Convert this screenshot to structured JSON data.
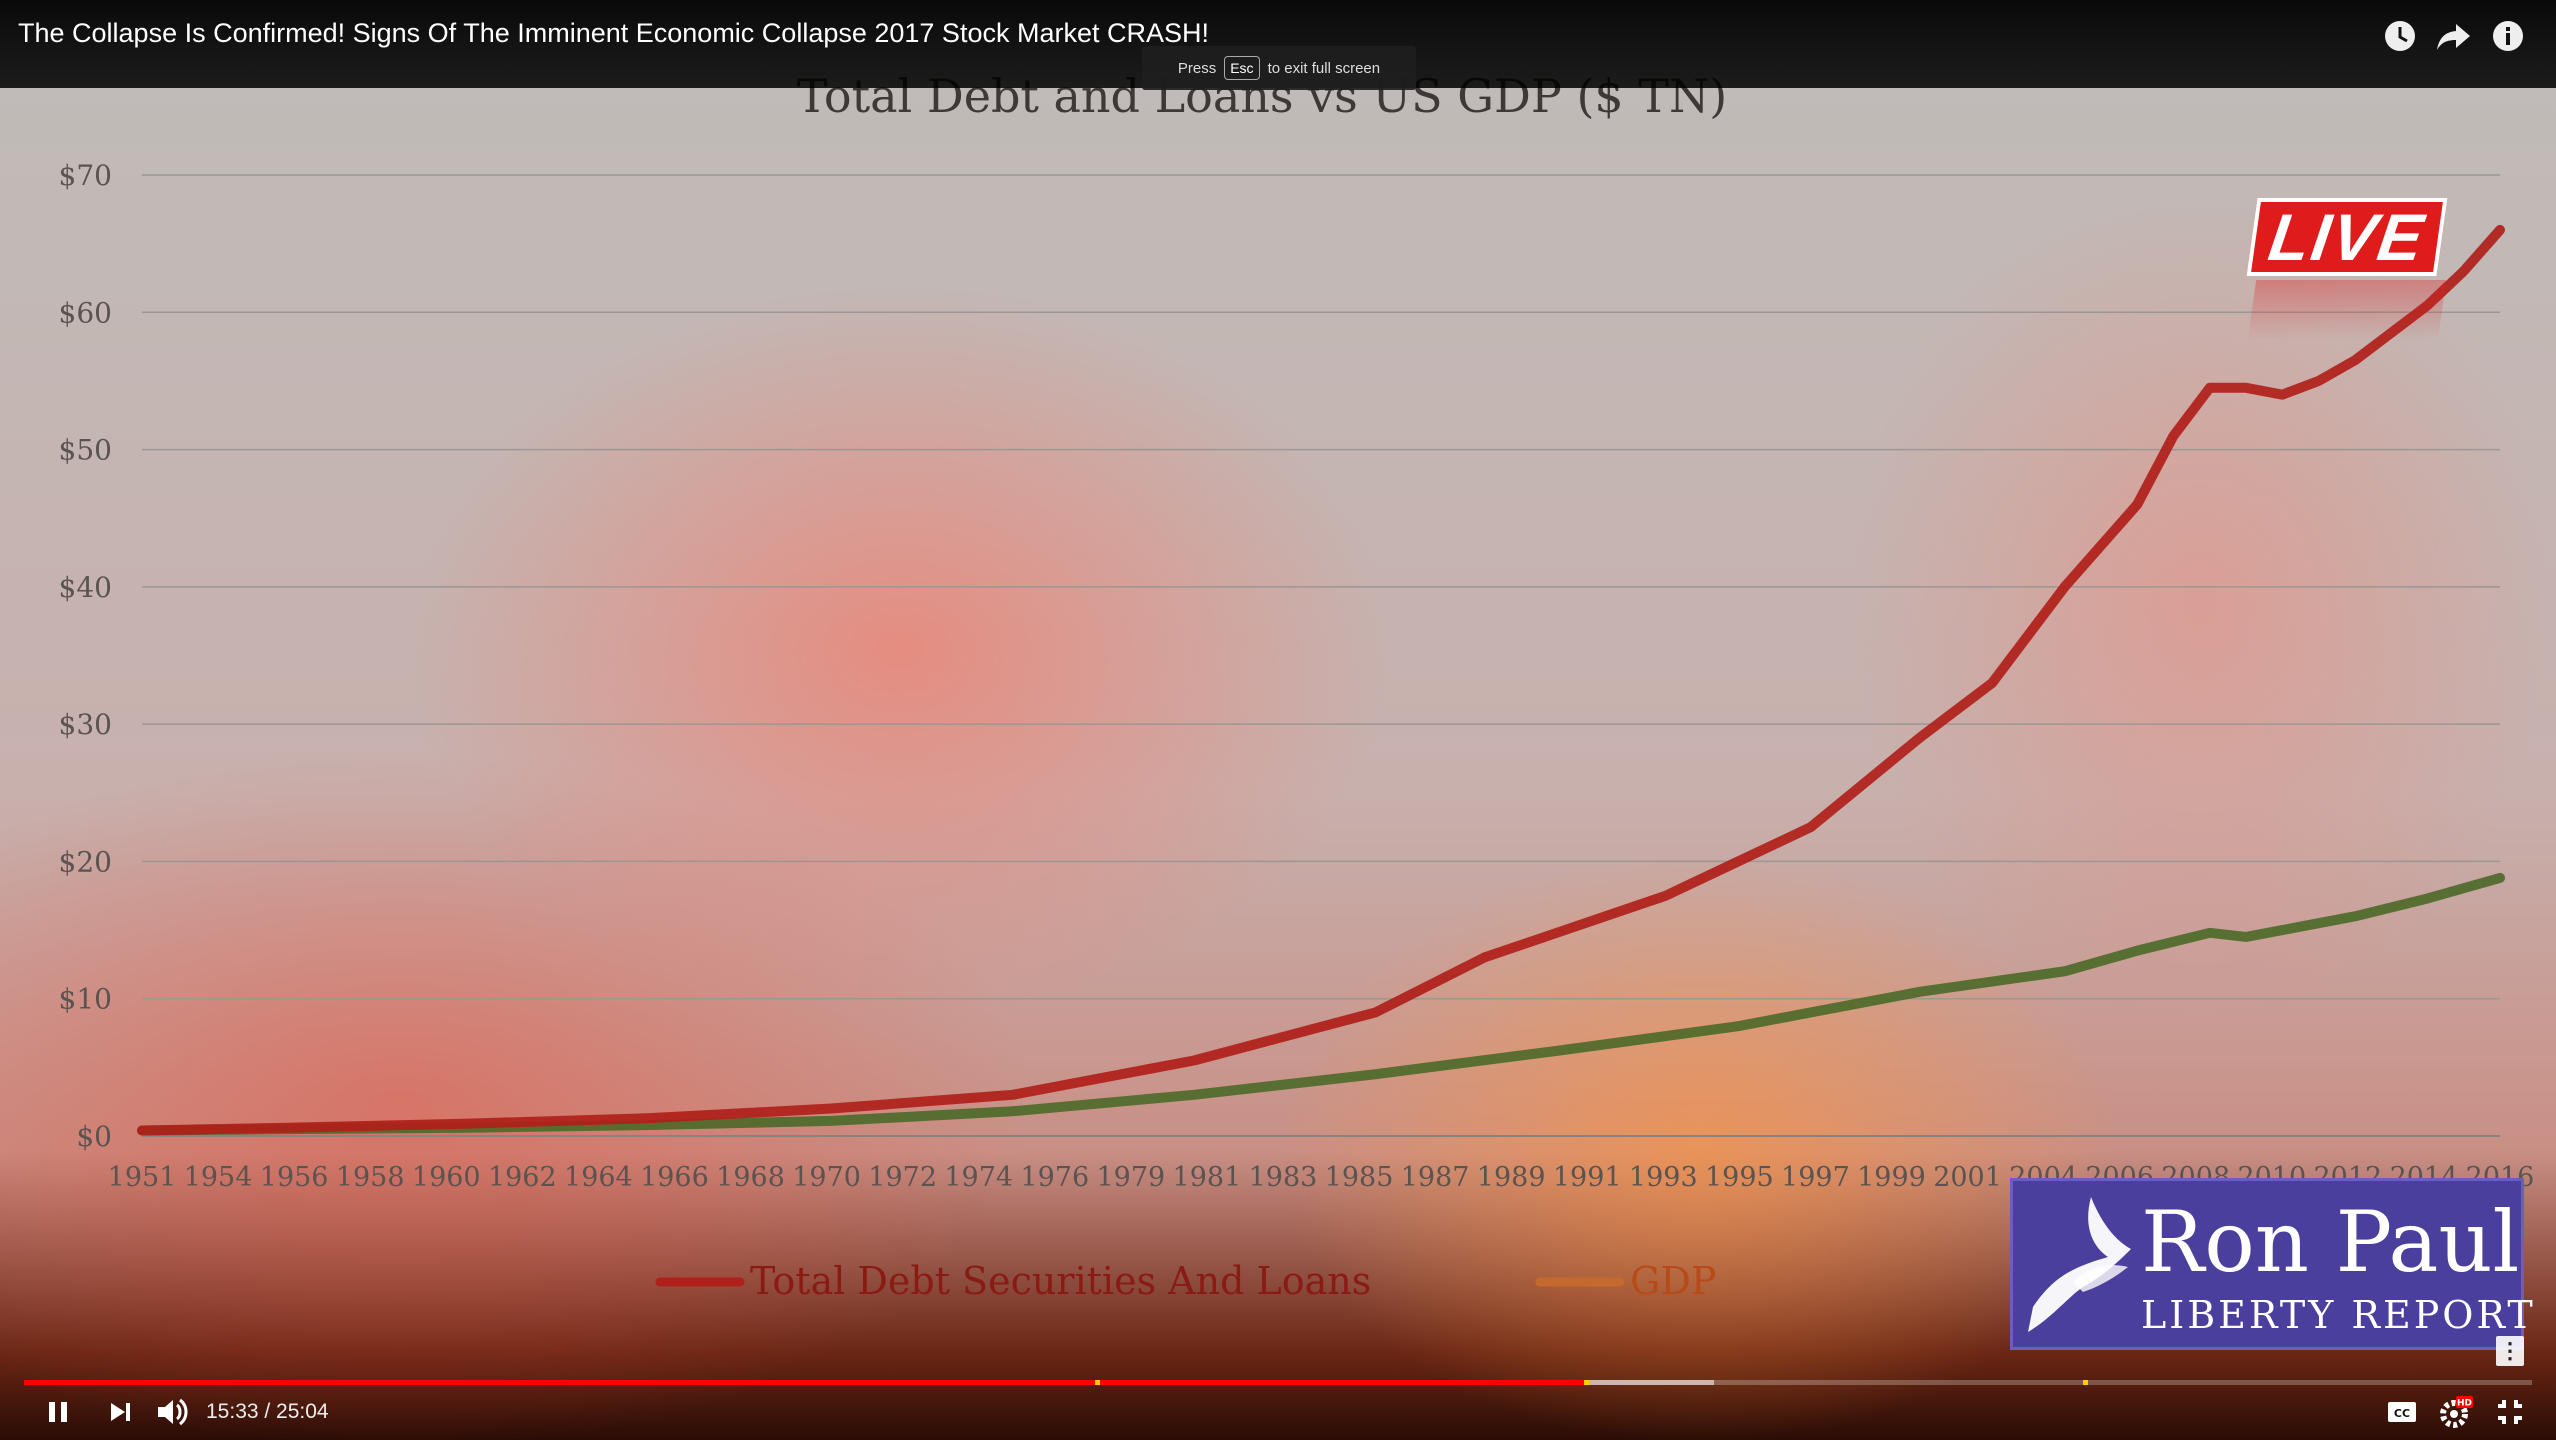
{
  "window": {
    "video_title": "The Collapse Is Confirmed! Signs Of The Imminent Economic Collapse 2017 Stock Market CRASH!",
    "top_icons": [
      "watch-later-icon",
      "share-icon",
      "info-icon"
    ]
  },
  "fullscreen_hint": {
    "press": "Press",
    "key": "Esc",
    "rest": "to exit full screen"
  },
  "live_badge": {
    "text": "LIVE"
  },
  "logo": {
    "name": "Ron Paul",
    "subtitle": "LIBERTY REPORT"
  },
  "player": {
    "time": "15:33 / 25:04",
    "played_fraction": 0.622,
    "buffered_fraction": 0.674,
    "ad_marker_fractions": [
      0.427,
      0.622,
      0.821
    ],
    "buttons": [
      "pause-icon",
      "next-icon",
      "volume-icon",
      "captions-icon",
      "settings-icon",
      "exit-fullscreen-icon"
    ],
    "settings_badge": "HD"
  },
  "chart_data": {
    "type": "line",
    "title": "Total Debt and Loans vs US GDP ($ TN)",
    "xlabel": "",
    "ylabel": "",
    "ylim": [
      0,
      70
    ],
    "yticks": [
      "$0",
      "$10",
      "$20",
      "$30",
      "$40",
      "$50",
      "$60",
      "$70"
    ],
    "xticks": [
      "1951",
      "1954",
      "1956",
      "1958",
      "1960",
      "1962",
      "1964",
      "1966",
      "1968",
      "1970",
      "1972",
      "1974",
      "1976",
      "1979",
      "1981",
      "1983",
      "1985",
      "1987",
      "1989",
      "1991",
      "1993",
      "1995",
      "1997",
      "1999",
      "2001",
      "2004",
      "2006",
      "2008",
      "2010",
      "2012",
      "2014",
      "2016"
    ],
    "grid": true,
    "legend_position": "bottom",
    "colors": {
      "debt": "#b0201a",
      "gdp": "#4e6a2a"
    },
    "series": [
      {
        "name": "Total Debt Securities And Loans",
        "x": [
          "1951",
          "1955",
          "1960",
          "1965",
          "1970",
          "1975",
          "1980",
          "1985",
          "1988",
          "1990",
          "1993",
          "1995",
          "1997",
          "2000",
          "2002",
          "2004",
          "2006",
          "2007",
          "2008",
          "2009",
          "2010",
          "2011",
          "2012",
          "2013",
          "2014",
          "2015",
          "2016"
        ],
        "values": [
          0.4,
          0.6,
          0.9,
          1.3,
          2.0,
          3.0,
          5.5,
          9.0,
          13.0,
          14.8,
          17.5,
          20.0,
          22.5,
          29.0,
          33.0,
          40.0,
          46.0,
          51.0,
          54.5,
          54.5,
          54.0,
          55.0,
          56.5,
          58.5,
          60.5,
          63.0,
          66.0
        ]
      },
      {
        "name": "GDP",
        "x": [
          "1951",
          "1955",
          "1960",
          "1965",
          "1970",
          "1975",
          "1980",
          "1985",
          "1990",
          "1995",
          "2000",
          "2004",
          "2006",
          "2008",
          "2009",
          "2010",
          "2012",
          "2014",
          "2016"
        ],
        "values": [
          0.4,
          0.5,
          0.6,
          0.8,
          1.1,
          1.8,
          3.0,
          4.5,
          6.2,
          8.0,
          10.5,
          12.0,
          13.5,
          14.8,
          14.5,
          15.0,
          16.0,
          17.3,
          18.8
        ]
      }
    ]
  }
}
